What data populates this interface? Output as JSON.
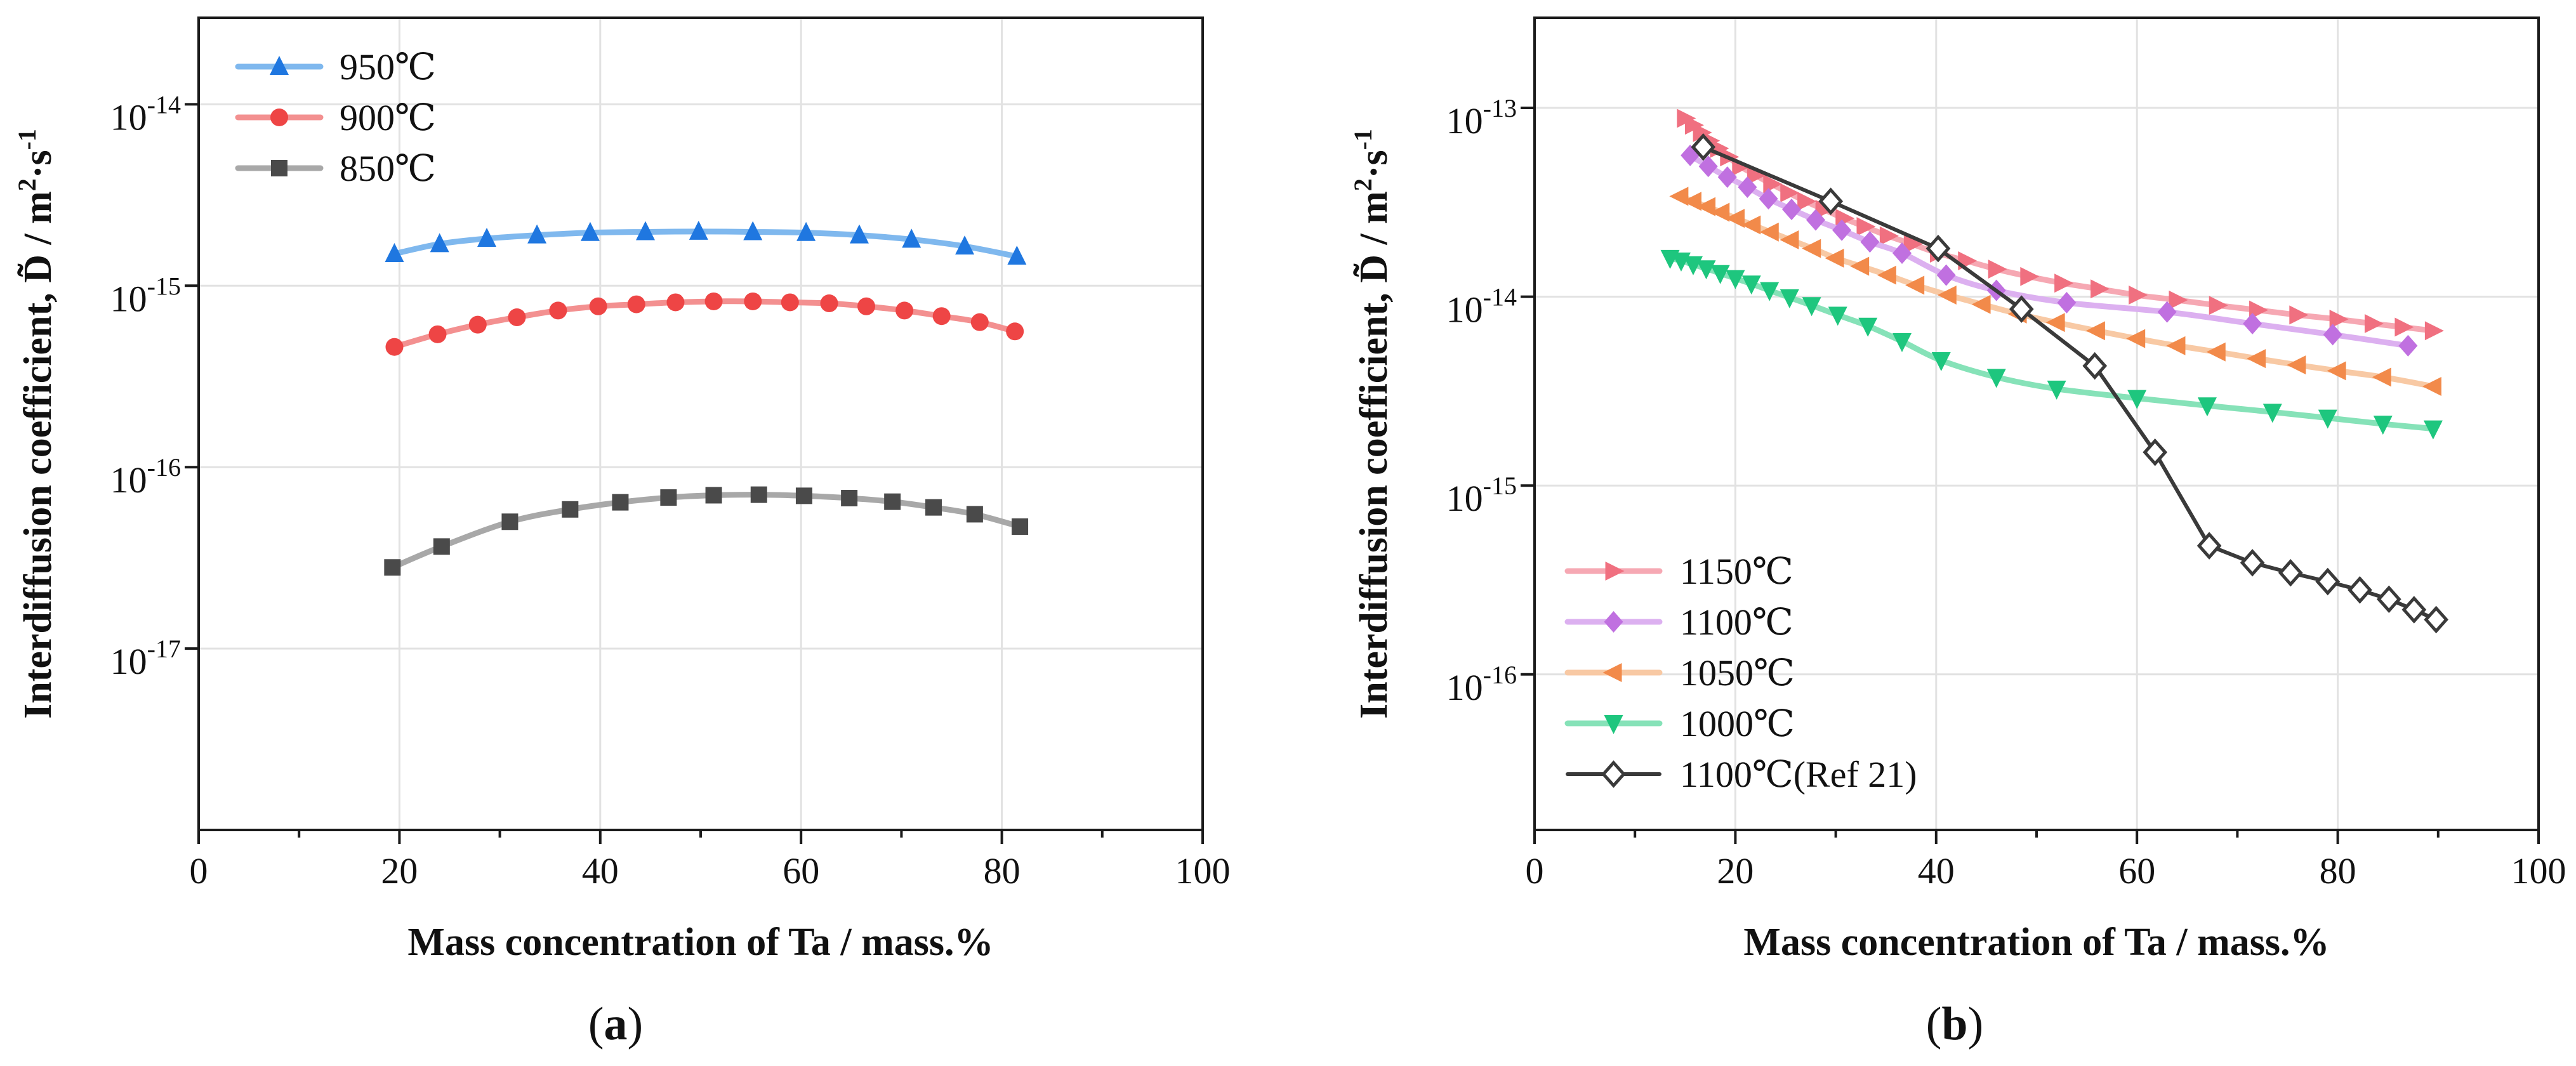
{
  "chart_data": [
    {
      "type": "line",
      "panel_label": "a",
      "caption_open": "(",
      "caption_close": ")",
      "xlabel": "Mass concentration of Ta / mass.%",
      "ylabel": "Interdiffusion coefficient, D̃  / m²·s⁻¹",
      "ylabel_parts": {
        "prefix": "Interdiffusion coefficient, ",
        "symbol": "D̃",
        "unit_sep": "  / m",
        "exp1": "2",
        "mid": "·s",
        "exp2": "-1"
      },
      "xlim": [
        0,
        100
      ],
      "ylim": [
        1e-18,
        3e-14
      ],
      "yscale": "log",
      "grid": true,
      "legend_position": "top-left",
      "x_ticks": [
        {
          "value": 0,
          "label": "0"
        },
        {
          "value": 20,
          "label": "20"
        },
        {
          "value": 40,
          "label": "40"
        },
        {
          "value": 60,
          "label": "60"
        },
        {
          "value": 80,
          "label": "80"
        },
        {
          "value": 100,
          "label": "100"
        }
      ],
      "y_ticks": [
        {
          "value": 1e-17,
          "base": "10",
          "exp": "-17"
        },
        {
          "value": 1e-16,
          "base": "10",
          "exp": "-16"
        },
        {
          "value": 1e-15,
          "base": "10",
          "exp": "-15"
        },
        {
          "value": 1e-14,
          "base": "10",
          "exp": "-14"
        }
      ],
      "series": [
        {
          "name": "950℃",
          "marker": "triangle-up",
          "color": "#1f77e0",
          "line_color": "#7fb8ee",
          "smooth": true,
          "x": [
            19.5,
            24,
            28.7,
            33.7,
            39,
            44.5,
            49.8,
            55.2,
            60.5,
            65.8,
            71,
            76.3,
            81.5
          ],
          "y": [
            1.5e-15,
            1.7e-15,
            1.82e-15,
            1.9e-15,
            1.96e-15,
            1.98e-15,
            1.99e-15,
            1.98e-15,
            1.96e-15,
            1.9e-15,
            1.8e-15,
            1.65e-15,
            1.45e-15
          ]
        },
        {
          "name": "900℃",
          "marker": "circle",
          "color": "#ee4545",
          "line_color": "#f39090",
          "smooth": true,
          "x": [
            19.5,
            23.8,
            27.8,
            31.7,
            35.8,
            39.8,
            43.6,
            47.5,
            51.3,
            55.2,
            58.9,
            62.8,
            66.5,
            70.3,
            74,
            77.8,
            81.3
          ],
          "y": [
            4.6e-16,
            5.4e-16,
            6.1e-16,
            6.7e-16,
            7.3e-16,
            7.7e-16,
            7.9e-16,
            8.1e-16,
            8.2e-16,
            8.2e-16,
            8.1e-16,
            8e-16,
            7.7e-16,
            7.3e-16,
            6.8e-16,
            6.3e-16,
            5.6e-16
          ]
        },
        {
          "name": "850℃",
          "marker": "square",
          "color": "#4a4a4a",
          "line_color": "#a8a8a8",
          "smooth": true,
          "x": [
            19.3,
            24.2,
            31,
            37,
            42,
            46.8,
            51.3,
            55.8,
            60.3,
            64.8,
            69.1,
            73.2,
            77.3,
            81.8
          ],
          "y": [
            2.8e-17,
            3.65e-17,
            5e-17,
            5.85e-17,
            6.4e-17,
            6.8e-17,
            7e-17,
            7.05e-17,
            6.95e-17,
            6.75e-17,
            6.45e-17,
            6e-17,
            5.5e-17,
            4.7e-17
          ]
        }
      ]
    },
    {
      "type": "line",
      "panel_label": "b",
      "caption_open": "(",
      "caption_close": ")",
      "xlabel": "Mass concentration of Ta / mass.%",
      "ylabel": "Interdiffusion coefficient, D̃  / m²·s⁻¹",
      "ylabel_parts": {
        "prefix": "Interdiffusion coefficient, ",
        "symbol": "D̃",
        "unit_sep": "  / m",
        "exp1": "2",
        "mid": "·s",
        "exp2": "-1"
      },
      "xlim": [
        0,
        100
      ],
      "ylim": [
        1.5e-17,
        3e-13
      ],
      "yscale": "log",
      "grid": true,
      "legend_position": "bottom-left",
      "x_ticks": [
        {
          "value": 0,
          "label": "0"
        },
        {
          "value": 20,
          "label": "20"
        },
        {
          "value": 40,
          "label": "40"
        },
        {
          "value": 60,
          "label": "60"
        },
        {
          "value": 80,
          "label": "80"
        },
        {
          "value": 100,
          "label": "100"
        }
      ],
      "y_ticks": [
        {
          "value": 1e-16,
          "base": "10",
          "exp": "-16"
        },
        {
          "value": 1e-15,
          "base": "10",
          "exp": "-15"
        },
        {
          "value": 1e-14,
          "base": "10",
          "exp": "-14"
        },
        {
          "value": 1e-13,
          "base": "10",
          "exp": "-13"
        }
      ],
      "series": [
        {
          "name": "1150℃",
          "marker": "triangle-right",
          "color": "#f07080",
          "line_color": "#f6a8b3",
          "smooth": true,
          "x": [
            15,
            15.8,
            16.6,
            17.4,
            18.3,
            19.3,
            20.5,
            22,
            23.6,
            25.3,
            27,
            28.8,
            30.8,
            32.9,
            35.2,
            37.6,
            40.2,
            43,
            46,
            49.2,
            52.6,
            56.2,
            60,
            64,
            68,
            72,
            76,
            80,
            83.5,
            86.5,
            89.5
          ],
          "y": [
            8.8e-14,
            8.1e-14,
            7.4e-14,
            6.7e-14,
            6.1e-14,
            5.5e-14,
            4.9e-14,
            4.4e-14,
            3.95e-14,
            3.55e-14,
            3.2e-14,
            2.9e-14,
            2.6e-14,
            2.35e-14,
            2.1e-14,
            1.9e-14,
            1.7e-14,
            1.55e-14,
            1.4e-14,
            1.28e-14,
            1.18e-14,
            1.1e-14,
            1.02e-14,
            9.6e-15,
            9e-15,
            8.5e-15,
            8e-15,
            7.6e-15,
            7.2e-15,
            6.9e-15,
            6.6e-15
          ]
        },
        {
          "name": "1100℃",
          "marker": "diamond",
          "color": "#c070e0",
          "line_color": "#dcb0f0",
          "smooth": true,
          "x": [
            15.5,
            17.3,
            19.2,
            21.2,
            23.3,
            25.6,
            28,
            30.6,
            33.4,
            36.6,
            41,
            46,
            53,
            63,
            71.5,
            79.5,
            87
          ],
          "y": [
            5.6e-14,
            4.9e-14,
            4.3e-14,
            3.8e-14,
            3.3e-14,
            2.9e-14,
            2.55e-14,
            2.25e-14,
            1.95e-14,
            1.7e-14,
            1.3e-14,
            1.08e-14,
            9.3e-15,
            8.3e-15,
            7.2e-15,
            6.3e-15,
            5.5e-15
          ]
        },
        {
          "name": "1050℃",
          "marker": "triangle-left",
          "color": "#f28a4a",
          "line_color": "#f8c9a4",
          "smooth": true,
          "x": [
            14.5,
            15.8,
            17.2,
            18.6,
            20.1,
            21.7,
            23.5,
            25.5,
            27.7,
            30,
            32.5,
            35.2,
            38,
            41.2,
            44.6,
            48.2,
            52,
            56,
            60,
            64,
            68,
            72,
            76,
            80,
            84.5,
            89.5
          ],
          "y": [
            3.4e-14,
            3.2e-14,
            3e-14,
            2.8e-14,
            2.6e-14,
            2.4e-14,
            2.2e-14,
            2e-14,
            1.8e-14,
            1.6e-14,
            1.45e-14,
            1.3e-14,
            1.15e-14,
            1.02e-14,
            9.1e-15,
            8.1e-15,
            7.3e-15,
            6.6e-15,
            6e-15,
            5.5e-15,
            5.1e-15,
            4.7e-15,
            4.35e-15,
            4.05e-15,
            3.75e-15,
            3.35e-15
          ]
        },
        {
          "name": "1000℃",
          "marker": "triangle-down",
          "color": "#1ec67e",
          "line_color": "#86e2b8",
          "smooth": true,
          "x": [
            13.5,
            14.6,
            15.8,
            17.1,
            18.5,
            20,
            21.6,
            23.4,
            25.4,
            27.6,
            30.2,
            33.2,
            36.6,
            40.5,
            46,
            52,
            60,
            67,
            73.5,
            79,
            84.5,
            89.5
          ],
          "y": [
            1.6e-14,
            1.55e-14,
            1.48e-14,
            1.41e-14,
            1.33e-14,
            1.25e-14,
            1.17e-14,
            1.08e-14,
            9.9e-15,
            9e-15,
            8e-15,
            7e-15,
            5.8e-15,
            4.6e-15,
            3.75e-15,
            3.25e-15,
            2.9e-15,
            2.65e-15,
            2.45e-15,
            2.28e-15,
            2.12e-15,
            2e-15
          ]
        },
        {
          "name": "1100℃(Ref 21)",
          "marker": "diamond-open",
          "color": "#3a3a3a",
          "line_color": "#3a3a3a",
          "smooth": false,
          "x": [
            16.8,
            29.5,
            40.2,
            48.5,
            55.8,
            61.8,
            67.2,
            71.5,
            75.3,
            79,
            82.2,
            85.1,
            87.6,
            89.8
          ],
          "y": [
            6.2e-14,
            3.2e-14,
            1.8e-14,
            8.6e-15,
            4.3e-15,
            1.5e-15,
            4.8e-16,
            3.9e-16,
            3.45e-16,
            3.1e-16,
            2.8e-16,
            2.5e-16,
            2.2e-16,
            1.95e-16
          ]
        }
      ]
    }
  ]
}
